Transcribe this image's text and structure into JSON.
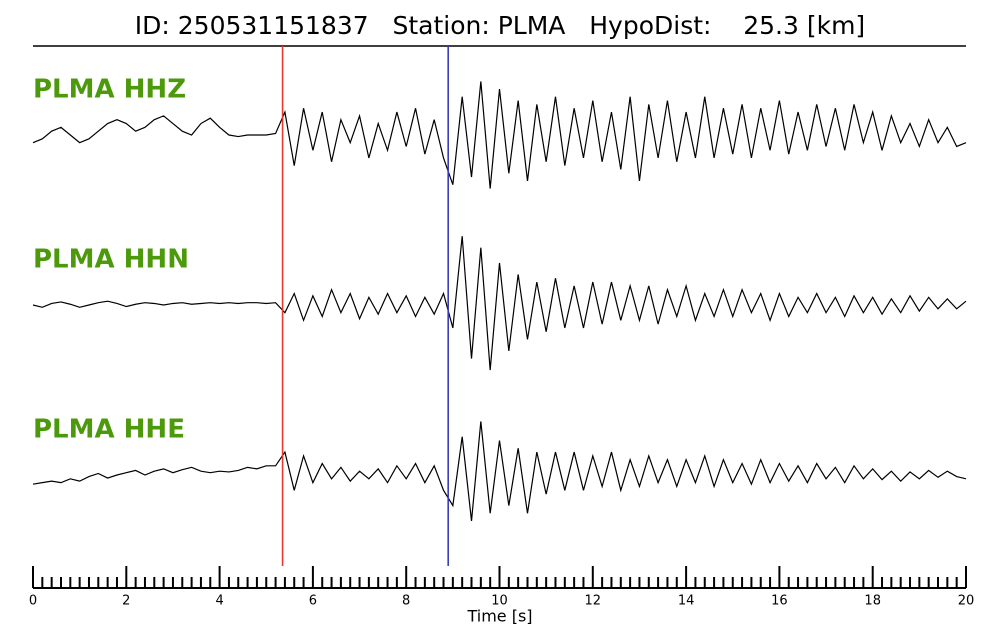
{
  "chart_data": {
    "type": "seismogram",
    "title": "ID: 250531151837   Station: PLMA   HypoDist:    25.3 [km]",
    "xlabel": "Time [s]",
    "xlim": [
      0,
      20
    ],
    "xticks": [
      0,
      2,
      4,
      6,
      8,
      10,
      12,
      14,
      16,
      18,
      20
    ],
    "xminorticks": [
      0.2,
      0.4,
      0.6,
      0.8,
      1,
      1.2,
      1.4,
      1.6,
      1.8,
      2.2,
      2.4,
      2.6,
      2.8,
      3,
      3.2,
      3.4,
      3.6,
      3.8,
      4.2,
      4.4,
      4.6,
      4.8,
      5,
      5.2,
      5.4,
      5.6,
      5.8,
      6.2,
      6.4,
      6.6,
      6.8,
      7,
      7.2,
      7.4,
      7.6,
      7.8,
      8.2,
      8.4,
      8.6,
      8.8,
      9,
      9.2,
      9.4,
      9.6,
      9.8,
      10.2,
      10.4,
      10.6,
      10.8,
      11,
      11.2,
      11.4,
      11.6,
      11.8,
      12.2,
      12.4,
      12.6,
      12.8,
      13,
      13.2,
      13.4,
      13.6,
      13.8,
      14.2,
      14.4,
      14.6,
      14.8,
      15,
      15.2,
      15.4,
      15.6,
      15.8,
      16.2,
      16.4,
      16.6,
      16.8,
      17,
      17.2,
      17.4,
      17.6,
      17.8,
      18.2,
      18.4,
      18.6,
      18.8,
      19,
      19.2,
      19.4,
      19.6,
      19.8
    ],
    "ylim": [
      -1,
      1
    ],
    "label_color": "#4c9a0c",
    "markers": [
      {
        "x": 5.35,
        "color": "#e8392e"
      },
      {
        "x": 8.9,
        "color": "#3a3ab8"
      }
    ],
    "x": [
      0,
      0.2,
      0.4,
      0.6,
      0.8,
      1,
      1.2,
      1.4,
      1.6,
      1.8,
      2,
      2.2,
      2.4,
      2.6,
      2.8,
      3,
      3.2,
      3.4,
      3.6,
      3.8,
      4,
      4.2,
      4.4,
      4.6,
      4.8,
      5,
      5.2,
      5.4,
      5.6,
      5.8,
      6,
      6.2,
      6.4,
      6.6,
      6.8,
      7,
      7.2,
      7.4,
      7.6,
      7.8,
      8,
      8.2,
      8.4,
      8.6,
      8.8,
      9,
      9.2,
      9.4,
      9.6,
      9.8,
      10,
      10.2,
      10.4,
      10.6,
      10.8,
      11,
      11.2,
      11.4,
      11.6,
      11.8,
      12,
      12.2,
      12.4,
      12.6,
      12.8,
      13,
      13.2,
      13.4,
      13.6,
      13.8,
      14,
      14.2,
      14.4,
      14.6,
      14.8,
      15,
      15.2,
      15.4,
      15.6,
      15.8,
      16,
      16.2,
      16.4,
      16.6,
      16.8,
      17,
      17.2,
      17.4,
      17.6,
      17.8,
      18,
      18.2,
      18.4,
      18.6,
      18.8,
      19,
      19.2,
      19.4,
      19.6,
      19.8,
      20
    ],
    "series": [
      {
        "name": "PLMA HHZ",
        "color": "#000000",
        "values": [
          -0.1,
          -0.05,
          0.05,
          0.1,
          0,
          -0.1,
          -0.05,
          0.05,
          0.15,
          0.2,
          0.15,
          0.05,
          0.1,
          0.2,
          0.25,
          0.15,
          0.05,
          0,
          0.15,
          0.22,
          0.1,
          0,
          -0.02,
          0,
          0,
          0,
          0.02,
          0.3,
          -0.4,
          0.35,
          -0.2,
          0.3,
          -0.35,
          0.2,
          -0.1,
          0.25,
          -0.3,
          0.15,
          -0.2,
          0.3,
          -0.15,
          0.35,
          -0.25,
          0.2,
          -0.3,
          -0.65,
          0.5,
          -0.55,
          0.7,
          -0.7,
          0.6,
          -0.5,
          0.45,
          -0.6,
          0.4,
          -0.35,
          0.5,
          -0.4,
          0.35,
          -0.3,
          0.45,
          -0.35,
          0.3,
          -0.45,
          0.5,
          -0.6,
          0.4,
          -0.3,
          0.45,
          -0.35,
          0.3,
          -0.3,
          0.5,
          -0.3,
          0.35,
          -0.25,
          0.4,
          -0.3,
          0.35,
          -0.2,
          0.45,
          -0.25,
          0.3,
          -0.2,
          0.4,
          -0.15,
          0.35,
          -0.2,
          0.4,
          -0.1,
          0.3,
          -0.2,
          0.25,
          -0.1,
          0.15,
          -0.15,
          0.2,
          -0.1,
          0.1,
          -0.15,
          -0.1
        ]
      },
      {
        "name": "PLMA HHN",
        "color": "#000000",
        "values": [
          0,
          -0.03,
          0.02,
          0.04,
          0.01,
          -0.03,
          0,
          0.03,
          0.05,
          0.02,
          -0.02,
          0.01,
          0.03,
          0.02,
          0,
          0.02,
          0.03,
          0.01,
          0.02,
          0.03,
          0.02,
          0.03,
          0.02,
          0.03,
          0.03,
          0.02,
          0.03,
          -0.1,
          0.15,
          -0.2,
          0.12,
          -0.15,
          0.2,
          -0.1,
          0.15,
          -0.18,
          0.1,
          -0.12,
          0.15,
          -0.1,
          0.12,
          -0.15,
          0.1,
          -0.12,
          0.15,
          -0.3,
          0.9,
          -0.7,
          0.75,
          -0.85,
          0.55,
          -0.6,
          0.4,
          -0.45,
          0.3,
          -0.35,
          0.35,
          -0.3,
          0.25,
          -0.3,
          0.3,
          -0.25,
          0.3,
          -0.2,
          0.25,
          -0.2,
          0.25,
          -0.25,
          0.2,
          -0.15,
          0.25,
          -0.2,
          0.15,
          -0.15,
          0.2,
          -0.15,
          0.2,
          -0.1,
          0.15,
          -0.2,
          0.15,
          -0.15,
          0.1,
          -0.1,
          0.15,
          -0.1,
          0.1,
          -0.15,
          0.12,
          -0.1,
          0.1,
          -0.12,
          0.08,
          -0.1,
          0.12,
          -0.08,
          0.1,
          -0.05,
          0.08,
          -0.05,
          0.05
        ]
      },
      {
        "name": "PLMA HHE",
        "color": "#000000",
        "values": [
          -0.12,
          -0.1,
          -0.08,
          -0.1,
          -0.05,
          -0.08,
          -0.02,
          0.02,
          -0.04,
          0,
          0.03,
          0.06,
          0,
          0.05,
          0.08,
          0.03,
          0.07,
          0.1,
          0.05,
          0.03,
          0.05,
          0.04,
          0.06,
          0.1,
          0.08,
          0.12,
          0.12,
          0.3,
          -0.2,
          0.25,
          -0.1,
          0.15,
          -0.05,
          0.1,
          -0.08,
          0.05,
          -0.05,
          0.08,
          -0.1,
          0.12,
          -0.05,
          0.15,
          -0.1,
          0.12,
          -0.2,
          -0.4,
          0.5,
          -0.6,
          0.7,
          -0.5,
          0.45,
          -0.4,
          0.35,
          -0.5,
          0.3,
          -0.25,
          0.3,
          -0.2,
          0.3,
          -0.2,
          0.25,
          -0.15,
          0.3,
          -0.2,
          0.2,
          -0.15,
          0.25,
          -0.1,
          0.2,
          -0.15,
          0.2,
          -0.1,
          0.25,
          -0.15,
          0.2,
          -0.1,
          0.15,
          -0.12,
          0.2,
          -0.1,
          0.15,
          -0.08,
          0.12,
          -0.1,
          0.15,
          -0.05,
          0.1,
          -0.1,
          0.12,
          -0.05,
          0.08,
          -0.06,
          0.05,
          -0.08,
          0.04,
          -0.05,
          0.06,
          -0.03,
          0.05,
          -0.02,
          -0.05
        ]
      }
    ]
  }
}
